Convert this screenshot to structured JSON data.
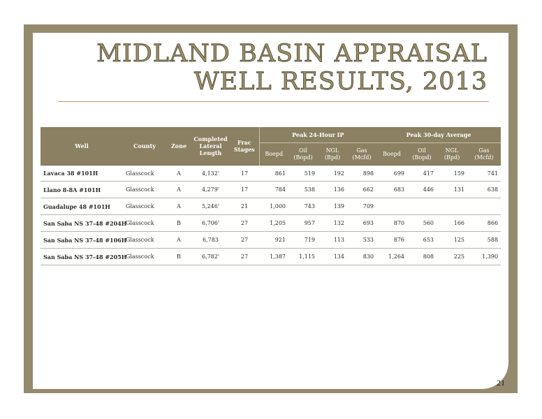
{
  "slide": {
    "title_line1": "MIDLAND BASIN APPRAISAL",
    "title_line2": "WELL RESULTS,  2013",
    "page_number": "21",
    "colors": {
      "frame": "#948a6e",
      "header": "#8b8162",
      "title": "#9a8f68",
      "rule": "#c9946f"
    }
  },
  "table": {
    "headers": {
      "well": "Well",
      "county": "County",
      "zone": "Zone",
      "lateral_line1": "Completed",
      "lateral_line2": "Lateral",
      "lateral_line3": "Length",
      "frac_line1": "Frac",
      "frac_line2": "Stages",
      "group_24h": "Peak 24-Hour IP",
      "group_30d": "Peak 30-day Average",
      "boepd": "Boepd",
      "oil_line1": "Oil",
      "oil_line2": "(Bopd)",
      "ngl_line1": "NGL",
      "ngl_line2": "(Bpd)",
      "gas_line1": "Gas",
      "gas_line2": "(Mcfd)"
    },
    "rows": [
      {
        "well": "Lavaca 38 #101H",
        "county": "Glasscock",
        "zone": "A",
        "lateral": "4,132'",
        "stages": "17",
        "boepd24": "861",
        "oil24": "519",
        "ngl24": "192",
        "gas24": "898",
        "boepd30": "699",
        "oil30": "417",
        "ngl30": "159",
        "gas30": "741"
      },
      {
        "well": "Llano 8-8A #101H",
        "county": "Glasscock",
        "zone": "A",
        "lateral": "4,279'",
        "stages": "17",
        "boepd24": "784",
        "oil24": "538",
        "ngl24": "136",
        "gas24": "662",
        "boepd30": "683",
        "oil30": "446",
        "ngl30": "131",
        "gas30": "638"
      },
      {
        "well": "Guadalupe 48 #101H",
        "county": "Glasscock",
        "zone": "A",
        "lateral": "5,246'",
        "stages": "21",
        "boepd24": "1,000",
        "oil24": "743",
        "ngl24": "139",
        "gas24": "709",
        "boepd30": "",
        "oil30": "",
        "ngl30": "",
        "gas30": ""
      },
      {
        "well": "San Saba NS 37-48 #204H",
        "county": "Glasscock",
        "zone": "B",
        "lateral": "6,706'",
        "stages": "27",
        "boepd24": "1,205",
        "oil24": "957",
        "ngl24": "132",
        "gas24": "693",
        "boepd30": "870",
        "oil30": "560",
        "ngl30": "166",
        "gas30": "866"
      },
      {
        "well": "San Saba NS 37-48 #106H",
        "county": "Glasscock",
        "zone": "A",
        "lateral": "6,783",
        "stages": "27",
        "boepd24": "921",
        "oil24": "719",
        "ngl24": "113",
        "gas24": "533",
        "boepd30": "876",
        "oil30": "653",
        "ngl30": "125",
        "gas30": "588"
      },
      {
        "well": "San Saba NS 37-48 #205H",
        "county": "Glasscock",
        "zone": "B",
        "lateral": "6,782'",
        "stages": "27",
        "boepd24": "1,387",
        "oil24": "1,115",
        "ngl24": "134",
        "gas24": "830",
        "boepd30": "1,264",
        "oil30": "808",
        "ngl30": "225",
        "gas30": "1,390"
      }
    ]
  }
}
